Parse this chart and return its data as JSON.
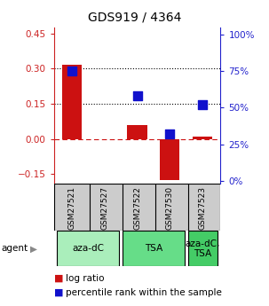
{
  "title": "GDS919 / 4364",
  "samples": [
    "GSM27521",
    "GSM27527",
    "GSM27522",
    "GSM27530",
    "GSM27523"
  ],
  "log_ratio": [
    0.315,
    0.0,
    0.06,
    -0.175,
    0.01
  ],
  "percentile_rank": [
    75,
    null,
    58,
    32,
    52
  ],
  "ylim_left": [
    -0.19,
    0.475
  ],
  "ylim_right": [
    -2,
    105
  ],
  "yticks_left": [
    -0.15,
    0.0,
    0.15,
    0.3,
    0.45
  ],
  "yticks_right": [
    0,
    25,
    50,
    75,
    100
  ],
  "hlines_black": [
    0.15,
    0.3
  ],
  "hline_red": 0.0,
  "agent_labels": [
    "aza-dC",
    "TSA",
    "aza-dC,\nTSA"
  ],
  "agent_groups": [
    [
      0,
      1
    ],
    [
      2,
      3
    ],
    [
      4
    ]
  ],
  "agent_colors": [
    "#aaeebb",
    "#66dd88",
    "#44cc66"
  ],
  "bar_color": "#cc1111",
  "dot_color": "#1111cc",
  "bar_width": 0.6,
  "dot_size": 45,
  "background_color": "#ffffff",
  "sample_box_color": "#cccccc",
  "left_tick_color": "#cc2222",
  "right_tick_color": "#2222cc",
  "left_spine_color": "#333333",
  "right_spine_color": "#333333"
}
